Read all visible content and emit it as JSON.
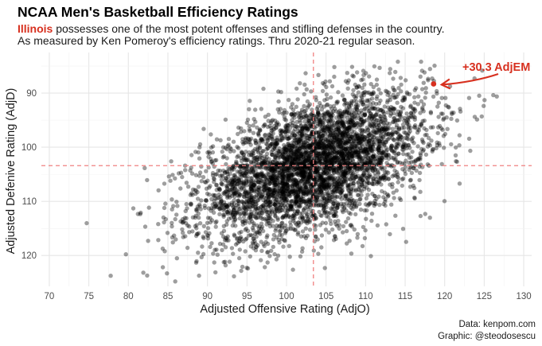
{
  "chart_data": {
    "type": "scatter",
    "title": "NCAA Men's Basketball Efficiency Ratings",
    "subtitle": {
      "highlight": "Illinois",
      "line1_rest": " possesses one of the most potent offenses and stifling defenses in the country.",
      "line2": "As measured by Ken Pomeroy's efficiency ratings. Thru 2020-21 regular season."
    },
    "xlabel": "Adjusted Offensive Rating (AdjO)",
    "ylabel": "Adjusted Defenive Rating (AdjD)",
    "xlim": [
      69,
      131
    ],
    "ylim": [
      125.7,
      82.5
    ],
    "y_reversed": true,
    "x_ticks": [
      70,
      75,
      80,
      85,
      90,
      95,
      100,
      105,
      110,
      115,
      120,
      125,
      130
    ],
    "y_ticks": [
      90,
      100,
      110,
      120
    ],
    "grid": true,
    "reference_lines": {
      "mean_adjO": 103.4,
      "mean_adjD": 103.4
    },
    "cloud": {
      "description_points": "approx. 5000 team-seasons, black points with alpha",
      "n": 4600,
      "center": [
        103.4,
        103.4
      ],
      "sd_offense": 7.1,
      "sd_defense": 6.6,
      "correlation": 0.5,
      "color": "#000000",
      "opacity": 0.38
    },
    "highlight_point": {
      "team": "Illinois",
      "adjO": 118.6,
      "adjD": 88.3,
      "color": "#d7301f"
    },
    "annotation": {
      "text": "+30.3 AdjEM",
      "color": "#d7301f"
    },
    "colors": {
      "accent": "#d7301f",
      "grid": "#e6e6e6",
      "reference": "#f08080"
    }
  },
  "caption": {
    "line1": "Data: kenpom.com",
    "line2": "Graphic: @steodosescu"
  }
}
